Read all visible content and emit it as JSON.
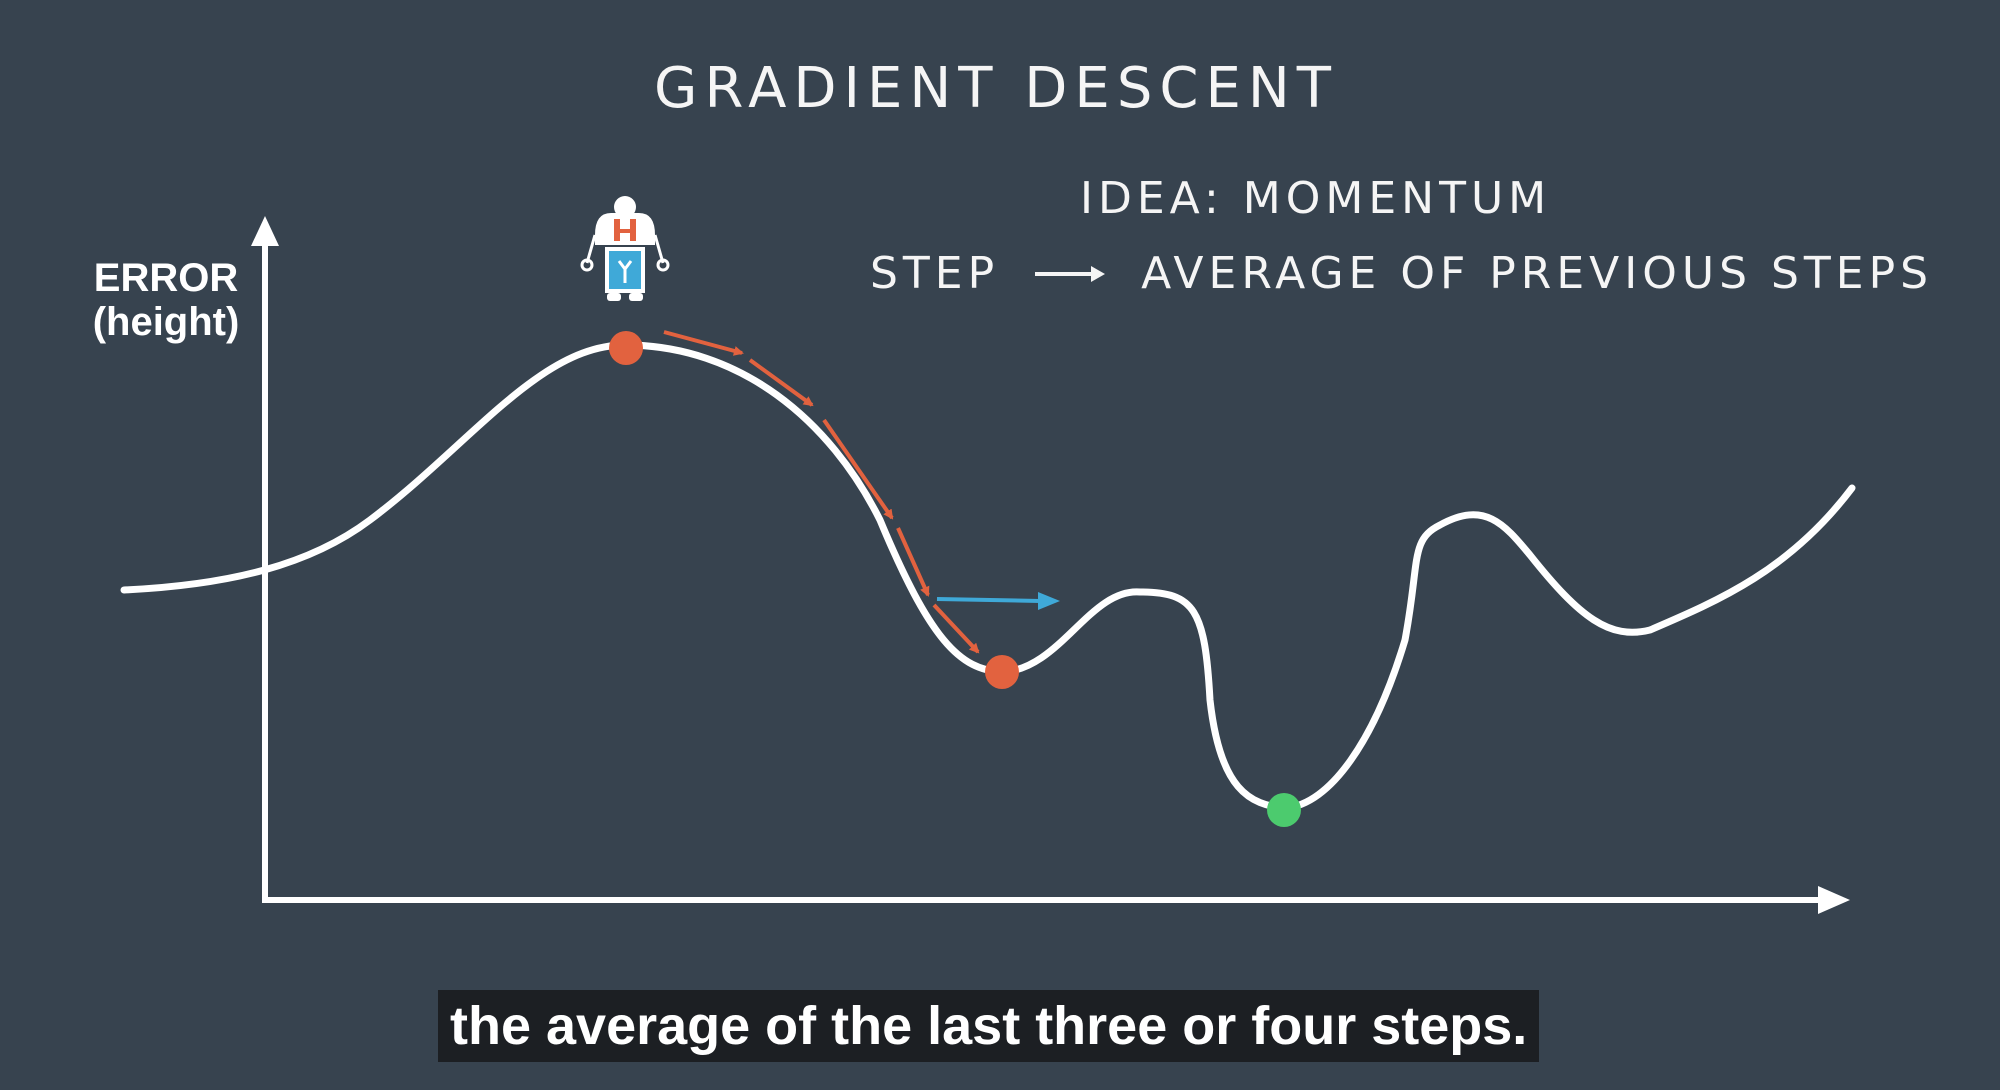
{
  "title": "GRADIENT DESCENT",
  "idea": "IDEA: MOMENTUM",
  "step_rule": {
    "left": "STEP",
    "right": "AVERAGE OF PREVIOUS STEPS"
  },
  "y_axis_label": {
    "line1": "ERROR",
    "line2": "(height)"
  },
  "caption": "the average of the last three or four steps.",
  "colors": {
    "background": "#37434f",
    "curve": "#ffffff",
    "step_points": "#e2623f",
    "minimum_point": "#4ccb6e",
    "momentum_arrow": "#3fa9d8",
    "caption_bg": "#1c1f23"
  },
  "icons": {
    "character": "robot-hiker-icon"
  }
}
